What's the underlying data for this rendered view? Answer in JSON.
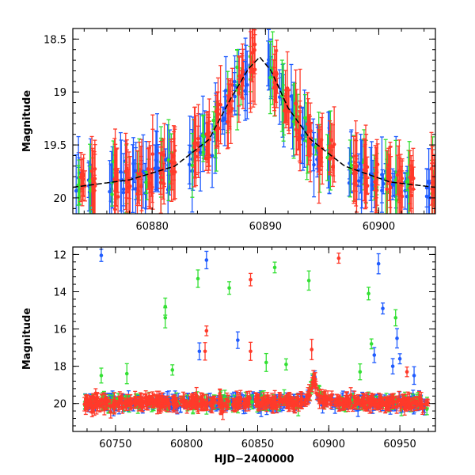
{
  "chart_data": [
    {
      "type": "scatter",
      "panel": "top",
      "title": "",
      "xlabel": "",
      "ylabel": "Magnitude",
      "xlim": [
        60873,
        60905
      ],
      "ylim": [
        20.15,
        18.4
      ],
      "y_inverted": true,
      "xticks": [
        60880,
        60890,
        60900
      ],
      "xtick_labels": [
        "60880",
        "60890",
        "60900"
      ],
      "yticks": [
        18.5,
        19,
        19.5,
        20
      ],
      "ytick_labels": [
        "18.5",
        "19",
        "19.5",
        "20"
      ],
      "series": [
        {
          "name": "blue filter",
          "color": "#1f5bff"
        },
        {
          "name": "green filter",
          "color": "#33e033"
        },
        {
          "name": "red filter",
          "color": "#ff3a2a"
        }
      ],
      "model_curve": {
        "name": "microlensing model",
        "color": "#000000",
        "style": "dashed",
        "baseline_mag": 19.95,
        "peak_mag": 18.67,
        "peak_time": 60889.5,
        "x": [
          60873,
          60878,
          60882,
          60885,
          60887,
          60888.5,
          60889.5,
          60890.5,
          60892,
          60894,
          60897,
          60901,
          60905
        ],
        "y": [
          19.9,
          19.83,
          19.7,
          19.45,
          19.05,
          18.78,
          18.67,
          18.8,
          19.15,
          19.45,
          19.7,
          19.85,
          19.9
        ]
      }
    },
    {
      "type": "scatter",
      "panel": "bottom",
      "title": "",
      "xlabel": "HJD−2400000",
      "ylabel": "Magnitude",
      "xlim": [
        60720,
        60975
      ],
      "ylim": [
        21.5,
        11.6
      ],
      "y_inverted": true,
      "xticks": [
        60750,
        60800,
        60850,
        60900,
        60950
      ],
      "xtick_labels": [
        "60750",
        "60800",
        "60850",
        "60900",
        "60950"
      ],
      "yticks": [
        12,
        14,
        16,
        18,
        20
      ],
      "ytick_labels": [
        "12",
        "14",
        "16",
        "18",
        "20"
      ],
      "baseline_mag": 19.95,
      "time_range": [
        60728,
        60970
      ],
      "outliers": [
        {
          "x": 60740,
          "y": 12.05,
          "series": "blue"
        },
        {
          "x": 60814,
          "y": 12.3,
          "series": "blue"
        },
        {
          "x": 60808,
          "y": 13.3,
          "series": "green"
        },
        {
          "x": 60830,
          "y": 13.8,
          "series": "green"
        },
        {
          "x": 60845,
          "y": 13.35,
          "series": "red"
        },
        {
          "x": 60862,
          "y": 12.7,
          "series": "green"
        },
        {
          "x": 60886,
          "y": 13.4,
          "series": "green"
        },
        {
          "x": 60907,
          "y": 12.2,
          "series": "red"
        },
        {
          "x": 60935,
          "y": 12.5,
          "series": "blue"
        },
        {
          "x": 60928,
          "y": 14.1,
          "series": "green"
        },
        {
          "x": 60938,
          "y": 14.9,
          "series": "blue"
        },
        {
          "x": 60785,
          "y": 14.8,
          "series": "green"
        },
        {
          "x": 60785,
          "y": 15.4,
          "series": "green"
        },
        {
          "x": 60947,
          "y": 15.4,
          "series": "green"
        },
        {
          "x": 60814,
          "y": 16.1,
          "series": "red"
        },
        {
          "x": 60836,
          "y": 16.6,
          "series": "blue"
        },
        {
          "x": 60948,
          "y": 16.5,
          "series": "blue"
        },
        {
          "x": 60813,
          "y": 17.2,
          "series": "red"
        },
        {
          "x": 60809,
          "y": 17.2,
          "series": "blue"
        },
        {
          "x": 60845,
          "y": 17.2,
          "series": "red"
        },
        {
          "x": 60888,
          "y": 17.1,
          "series": "red"
        },
        {
          "x": 60930,
          "y": 16.8,
          "series": "green"
        },
        {
          "x": 60950,
          "y": 17.6,
          "series": "blue"
        },
        {
          "x": 60932,
          "y": 17.4,
          "series": "blue"
        },
        {
          "x": 60856,
          "y": 17.8,
          "series": "green"
        },
        {
          "x": 60870,
          "y": 17.9,
          "series": "green"
        },
        {
          "x": 60758,
          "y": 18.4,
          "series": "green"
        },
        {
          "x": 60790,
          "y": 18.2,
          "series": "green"
        },
        {
          "x": 60740,
          "y": 18.5,
          "series": "green"
        },
        {
          "x": 60922,
          "y": 18.3,
          "series": "green"
        },
        {
          "x": 60960,
          "y": 18.5,
          "series": "blue"
        },
        {
          "x": 60945,
          "y": 18.0,
          "series": "blue"
        },
        {
          "x": 60955,
          "y": 18.3,
          "series": "red"
        }
      ]
    }
  ]
}
